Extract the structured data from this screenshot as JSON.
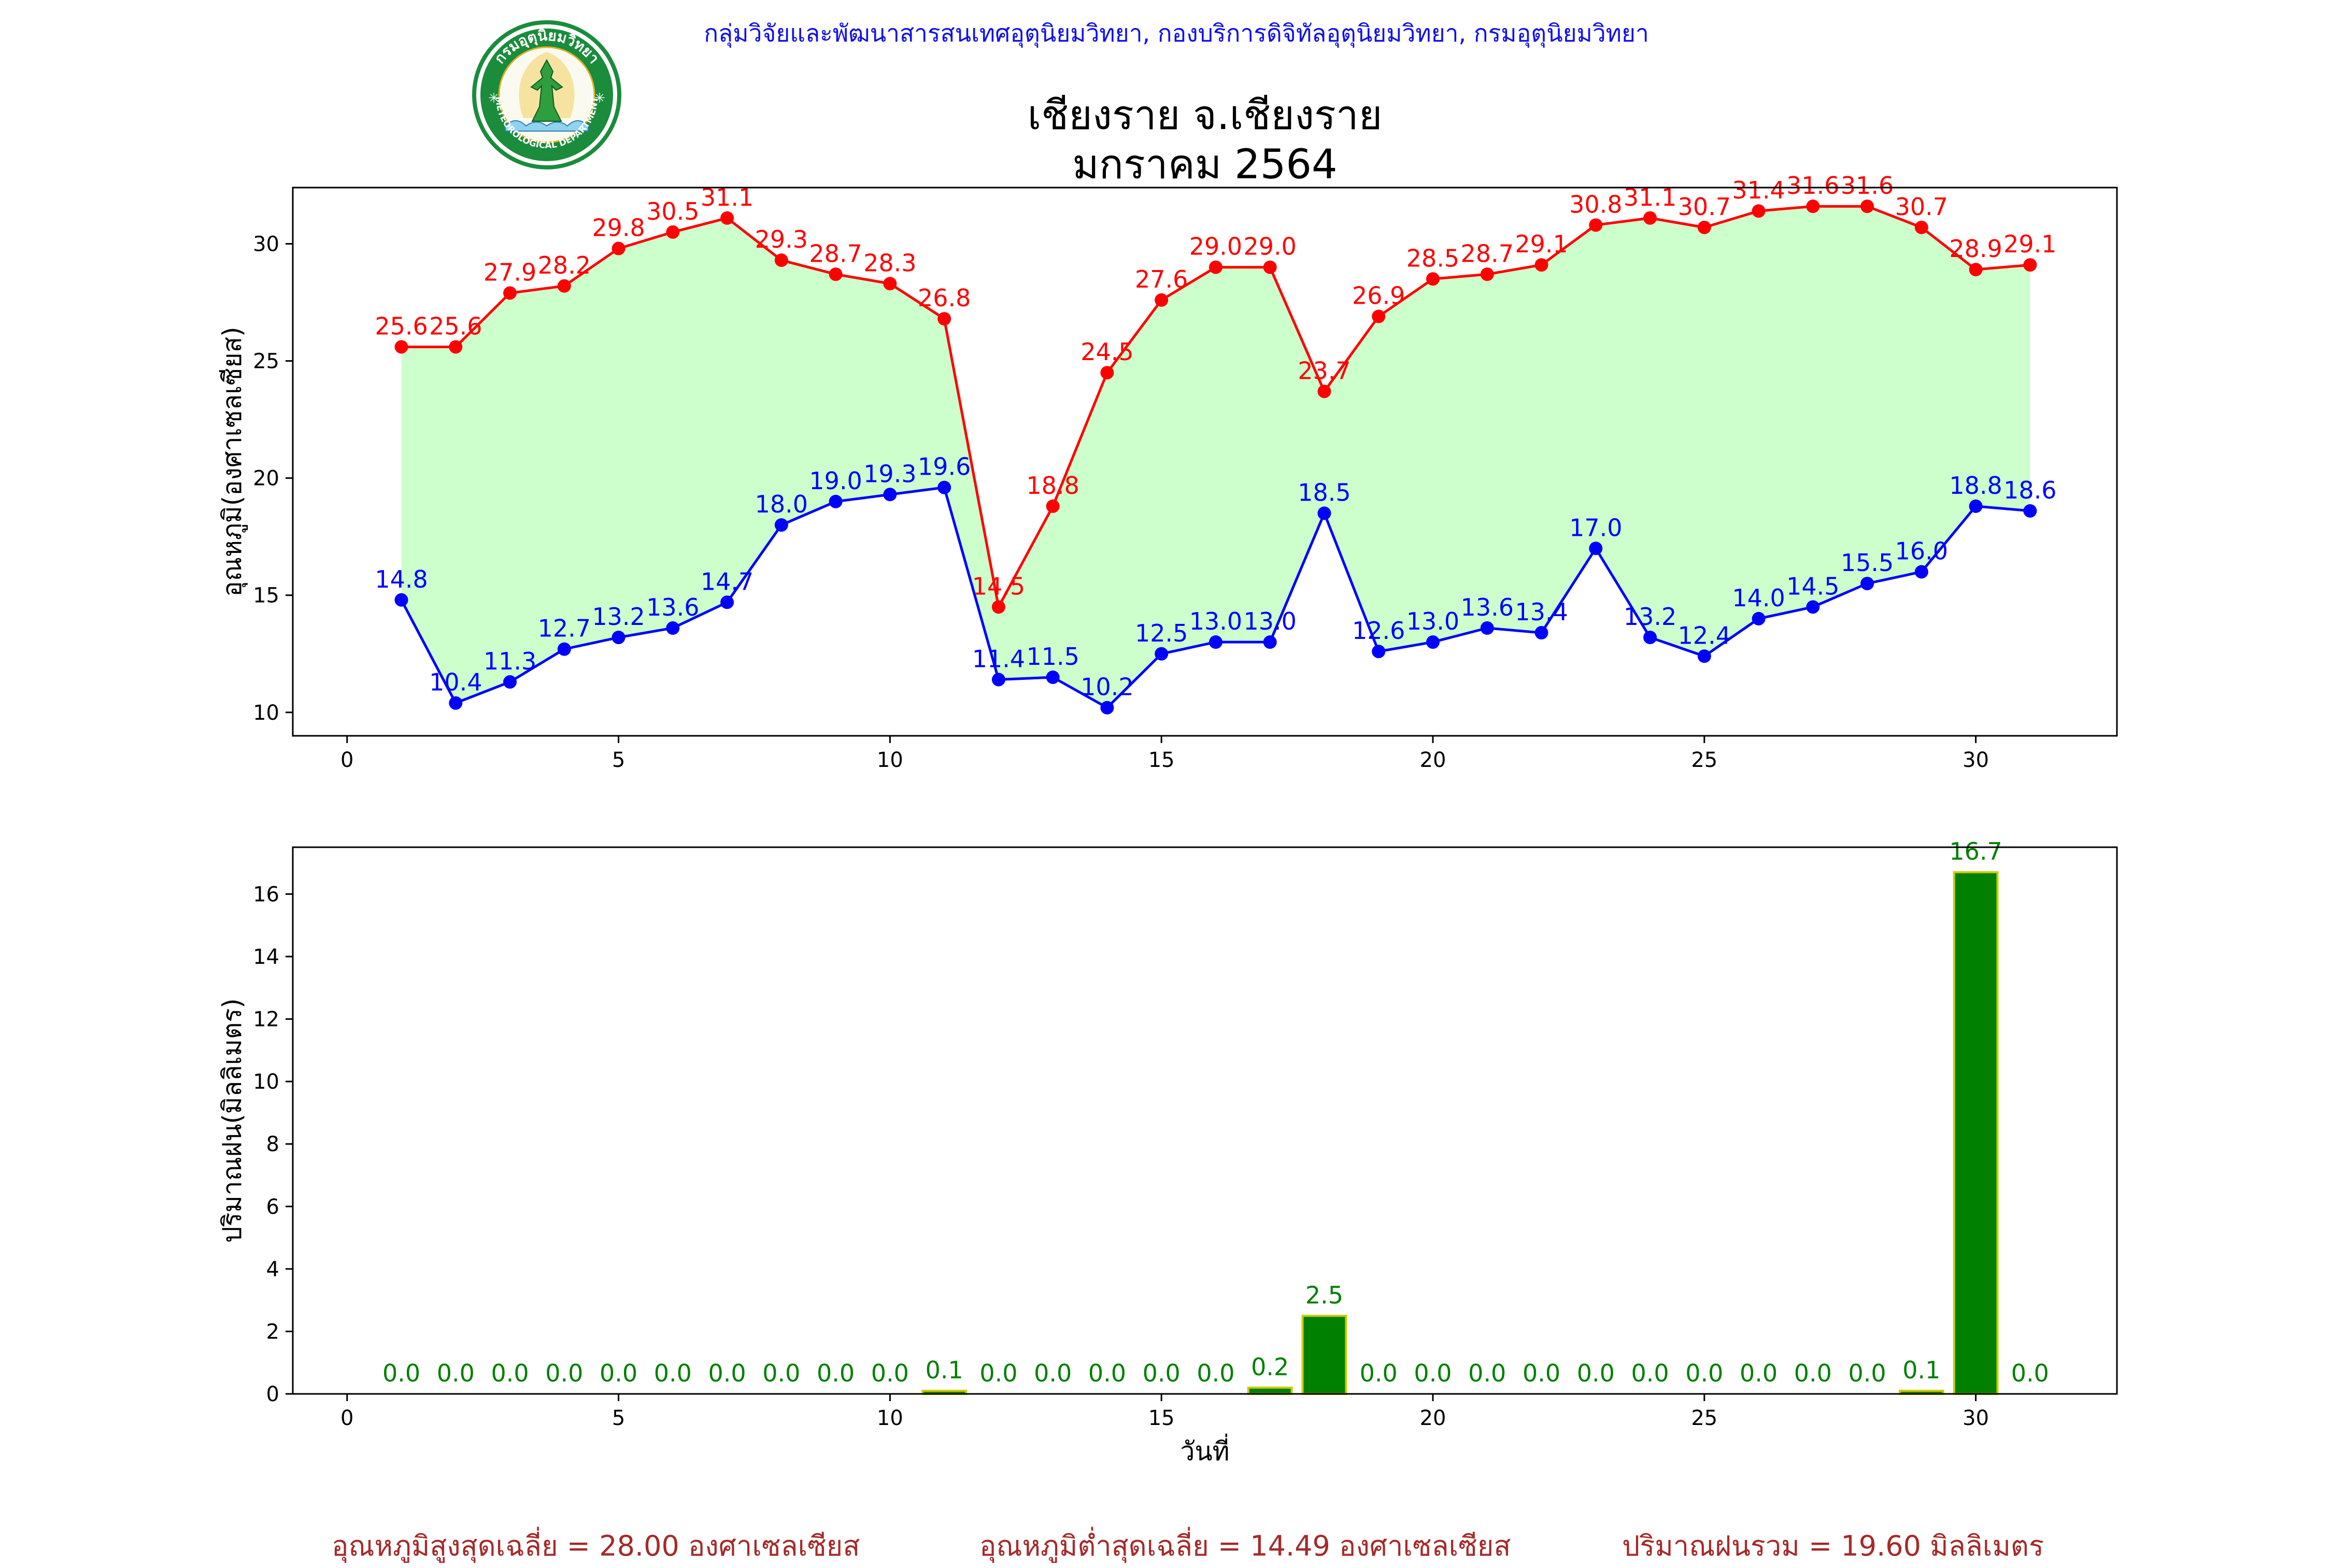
{
  "header": {
    "agency_text": "กลุ่มวิจัยและพัฒนาสารสนเทศอุตุนิยมวิทยา, กองบริการดิจิทัลอุตุนิยมวิทยา, กรมอุตุนิยมวิทยา",
    "title_line1": "เชียงราย จ.เชียงราย",
    "title_line2": "มกราคม 2564"
  },
  "logo": {
    "top_text": "กรมอุตุนิยมวิทยา",
    "bottom_text": "METEOROLOGICAL DEPARTMENT",
    "colors": {
      "ring": "#1a8c3c",
      "inner": "#fafaf0",
      "figure": "#2e9e3e",
      "gold": "#e0b020"
    }
  },
  "colors": {
    "max_line": "#ff0000",
    "min_line": "#0000ff",
    "fill": "#ccffcc",
    "rain_bar": "#008000",
    "rain_edge": "#cccc00",
    "rain_label": "#008000",
    "summary": "#a52a2a",
    "header": "#1010ee"
  },
  "chart_data": [
    {
      "type": "line",
      "ylabel": "อุณหภูมิ(องศาเซลเซียส)",
      "xlabel": "",
      "xlim": [
        -1,
        32.6
      ],
      "ylim": [
        9.0,
        32.4
      ],
      "xticks": [
        0,
        5,
        10,
        15,
        20,
        25,
        30
      ],
      "yticks": [
        10,
        15,
        20,
        25,
        30
      ],
      "x": [
        1,
        2,
        3,
        4,
        5,
        6,
        7,
        8,
        9,
        10,
        11,
        12,
        13,
        14,
        15,
        16,
        17,
        18,
        19,
        20,
        21,
        22,
        23,
        24,
        25,
        26,
        27,
        28,
        29,
        30,
        31
      ],
      "series": [
        {
          "key": "max",
          "values": [
            25.6,
            25.6,
            27.9,
            28.2,
            29.8,
            30.5,
            31.1,
            29.3,
            28.7,
            28.3,
            26.8,
            14.5,
            18.8,
            24.5,
            27.6,
            29.0,
            29.0,
            23.7,
            26.9,
            28.5,
            28.7,
            29.1,
            30.8,
            31.1,
            30.7,
            31.4,
            31.6,
            31.6,
            30.7,
            28.9,
            29.1
          ]
        },
        {
          "key": "min",
          "values": [
            14.8,
            10.4,
            11.3,
            12.7,
            13.2,
            13.6,
            14.7,
            18.0,
            19.0,
            19.3,
            19.6,
            11.4,
            11.5,
            10.2,
            12.5,
            13.0,
            13.0,
            18.5,
            12.6,
            13.0,
            13.6,
            13.4,
            17.0,
            13.2,
            12.4,
            14.0,
            14.5,
            15.5,
            16.0,
            18.8,
            18.6
          ]
        }
      ]
    },
    {
      "type": "bar",
      "ylabel": "ปริมาณฝน(มิลลิเมตร)",
      "xlabel": "วันที่",
      "xlim": [
        -1,
        32.6
      ],
      "ylim": [
        0,
        17.5
      ],
      "xticks": [
        0,
        5,
        10,
        15,
        20,
        25,
        30
      ],
      "yticks": [
        0,
        2,
        4,
        6,
        8,
        10,
        12,
        14,
        16
      ],
      "x": [
        1,
        2,
        3,
        4,
        5,
        6,
        7,
        8,
        9,
        10,
        11,
        12,
        13,
        14,
        15,
        16,
        17,
        18,
        19,
        20,
        21,
        22,
        23,
        24,
        25,
        26,
        27,
        28,
        29,
        30,
        31
      ],
      "values": [
        0.0,
        0.0,
        0.0,
        0.0,
        0.0,
        0.0,
        0.0,
        0.0,
        0.0,
        0.0,
        0.1,
        0.0,
        0.0,
        0.0,
        0.0,
        0.0,
        0.2,
        2.5,
        0.0,
        0.0,
        0.0,
        0.0,
        0.0,
        0.0,
        0.0,
        0.0,
        0.0,
        0.0,
        0.1,
        16.7,
        0.0
      ]
    }
  ],
  "summary": {
    "max_avg": "อุณหภูมิสูงสุดเฉลี่ย = 28.00 องศาเซลเซียส",
    "min_avg": "อุณหภูมิต่ำสุดเฉลี่ย = 14.49 องศาเซลเซียส",
    "rain_total": "ปริมาณฝนรวม = 19.60 มิลลิเมตร"
  }
}
